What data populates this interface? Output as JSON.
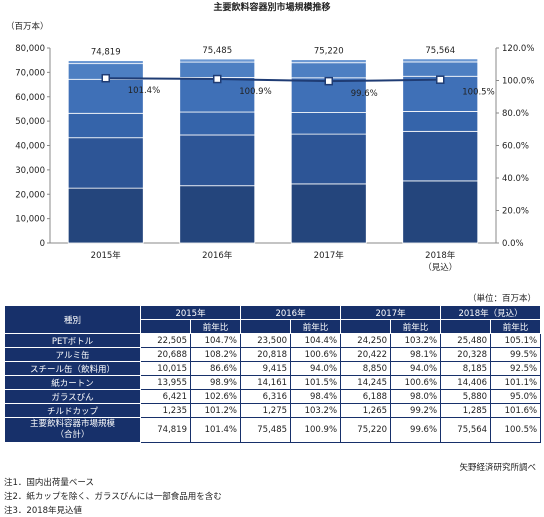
{
  "chart_data": {
    "type": "bar",
    "title": "主要飲料容器別市場規模推移",
    "y_unit": "（百万本）",
    "categories": [
      "2015年",
      "2016年",
      "2017年",
      "2018年\n（見込）"
    ],
    "stacked": true,
    "series": [
      {
        "name": "PETボトル",
        "values": [
          22505,
          23500,
          24250,
          25480
        ],
        "color": "#24457c"
      },
      {
        "name": "アルミ缶",
        "values": [
          20688,
          20818,
          20422,
          20328
        ],
        "color": "#2d5596"
      },
      {
        "name": "スチール缶（飲料用）",
        "values": [
          10015,
          9415,
          8850,
          8185
        ],
        "color": "#3564aa"
      },
      {
        "name": "紙カートン",
        "values": [
          13955,
          14161,
          14245,
          14406
        ],
        "color": "#3f70b7"
      },
      {
        "name": "ガラスびん",
        "values": [
          6421,
          6316,
          6188,
          5880
        ],
        "color": "#4d7fc2"
      },
      {
        "name": "チルドカップ",
        "values": [
          1235,
          1275,
          1265,
          1285
        ],
        "color": "#6a97d2"
      }
    ],
    "totals": [
      "74,819",
      "75,485",
      "75,220",
      "75,564"
    ],
    "totals_values": [
      74819,
      75485,
      75220,
      75564
    ],
    "line": {
      "name": "前年比",
      "values": [
        101.4,
        100.9,
        99.6,
        100.5
      ],
      "labels": [
        "101.4%",
        "100.9%",
        "99.6%",
        "100.5%"
      ]
    },
    "ylim_left": [
      0,
      80000
    ],
    "yticks_left": [
      "0",
      "10,000",
      "20,000",
      "30,000",
      "40,000",
      "50,000",
      "60,000",
      "70,000",
      "80,000"
    ],
    "ylim_right": [
      0,
      120
    ],
    "yticks_right": [
      "0.0%",
      "20.0%",
      "40.0%",
      "60.0%",
      "80.0%",
      "100.0%",
      "120.0%"
    ],
    "grid": false
  },
  "table": {
    "unit": "（単位：百万本）",
    "header_type": "種別",
    "years": [
      "2015年",
      "2016年",
      "2017年",
      "2018年（見込）"
    ],
    "yoy": "前年比",
    "rows": [
      {
        "label": "PETボトル",
        "cells": [
          "22,505",
          "104.7%",
          "23,500",
          "104.4%",
          "24,250",
          "103.2%",
          "25,480",
          "105.1%"
        ]
      },
      {
        "label": "アルミ缶",
        "cells": [
          "20,688",
          "108.2%",
          "20,818",
          "100.6%",
          "20,422",
          "98.1%",
          "20,328",
          "99.5%"
        ]
      },
      {
        "label": "スチール缶（飲料用）",
        "cells": [
          "10,015",
          "86.6%",
          "9,415",
          "94.0%",
          "8,850",
          "94.0%",
          "8,185",
          "92.5%"
        ]
      },
      {
        "label": "紙カートン",
        "cells": [
          "13,955",
          "98.9%",
          "14,161",
          "101.5%",
          "14,245",
          "100.6%",
          "14,406",
          "101.1%"
        ]
      },
      {
        "label": "ガラスびん",
        "cells": [
          "6,421",
          "102.6%",
          "6,316",
          "98.4%",
          "6,188",
          "98.0%",
          "5,880",
          "95.0%"
        ]
      },
      {
        "label": "チルドカップ",
        "cells": [
          "1,235",
          "101.2%",
          "1,275",
          "103.2%",
          "1,265",
          "99.2%",
          "1,285",
          "101.6%"
        ]
      }
    ],
    "total": {
      "label1": "主要飲料容器市場規模",
      "label2": "（合計）",
      "cells": [
        "74,819",
        "101.4%",
        "75,485",
        "100.9%",
        "75,220",
        "99.6%",
        "75,564",
        "100.5%"
      ]
    }
  },
  "source": "矢野経済研究所調べ",
  "notes": [
    "注1．国内出荷量ベース",
    "注2．紙カップを除く、ガラスびんには一部食品用を含む",
    "注3．2018年見込値"
  ],
  "colors": {
    "header": "#17306a",
    "line": "#1f3c74"
  }
}
